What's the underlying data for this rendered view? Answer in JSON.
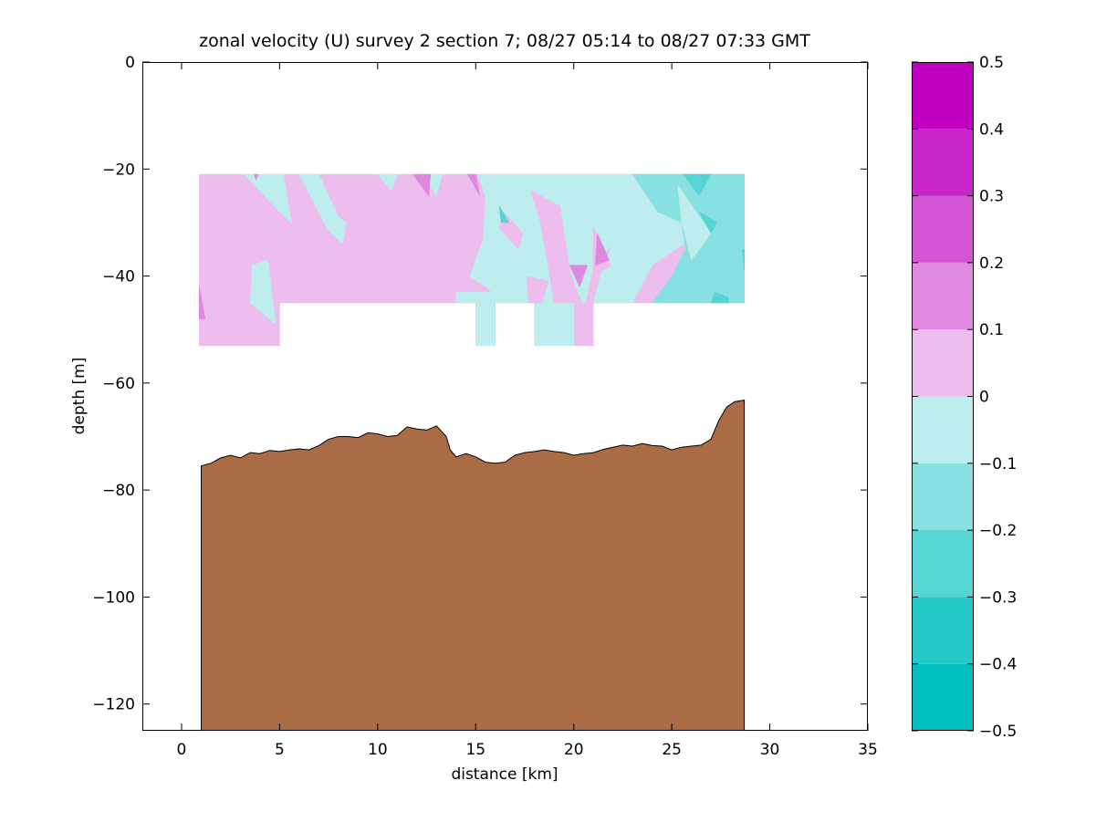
{
  "chart_data": {
    "type": "heatmap",
    "title": "zonal velocity (U) survey 2 section 7; 08/27 05:14 to 08/27 07:33 GMT",
    "xlabel": "distance [km]",
    "ylabel": "depth [m]",
    "xlim": [
      -2,
      35
    ],
    "ylim": [
      -125,
      0
    ],
    "x_ticks": [
      0,
      5,
      10,
      15,
      20,
      25,
      30,
      35
    ],
    "y_ticks": [
      0,
      -20,
      -40,
      -60,
      -80,
      -100,
      -120
    ],
    "grid": false,
    "colorbar": {
      "placement": "right",
      "range": [
        -0.5,
        0.5
      ],
      "levels": [
        -0.5,
        -0.4,
        -0.3,
        -0.2,
        -0.1,
        0,
        0.1,
        0.2,
        0.3,
        0.4,
        0.5
      ],
      "tick_labels": [
        "0.5",
        "0.4",
        "0.3",
        "0.2",
        "0.1",
        "0",
        "−0.1",
        "−0.2",
        "−0.3",
        "−0.4",
        "−0.5"
      ],
      "colors": [
        "#00bfbf",
        "#26c9c9",
        "#55d4d4",
        "#88e0e0",
        "#bdeded",
        "#edbded",
        "#e088e0",
        "#d455d4",
        "#c926c9",
        "#bf00bf"
      ]
    },
    "seafloor_color": "#a96c45",
    "velocity_regions": [
      {
        "level": "0 to 0.1",
        "color": "#edbded",
        "points": [
          [
            0.9,
            -21
          ],
          [
            28.7,
            -21
          ],
          [
            28.7,
            -45
          ],
          [
            21,
            -45
          ],
          [
            21,
            -53
          ],
          [
            18,
            -53
          ],
          [
            18,
            -45
          ],
          [
            16,
            -45
          ],
          [
            15,
            -45
          ],
          [
            5,
            -45
          ],
          [
            5,
            -53
          ],
          [
            0.9,
            -53
          ]
        ]
      },
      {
        "level": "-0.1 to 0",
        "color": "#bdeded",
        "points": [
          [
            3.2,
            -21
          ],
          [
            5.2,
            -21
          ],
          [
            5.6,
            -30
          ],
          [
            5,
            -28
          ]
        ]
      },
      {
        "level": "-0.1 to 0",
        "color": "#bdeded",
        "points": [
          [
            6,
            -21
          ],
          [
            7,
            -21
          ],
          [
            8,
            -29
          ],
          [
            7.4,
            -31
          ]
        ]
      },
      {
        "level": "-0.1 to 0",
        "color": "#bdeded",
        "points": [
          [
            7.7,
            -28
          ],
          [
            8.4,
            -30
          ],
          [
            8.2,
            -34
          ],
          [
            7.4,
            -31
          ]
        ]
      },
      {
        "level": "-0.1 to 0",
        "color": "#bdeded",
        "points": [
          [
            10,
            -21
          ],
          [
            11,
            -21
          ],
          [
            10.7,
            -24
          ]
        ]
      },
      {
        "level": "-0.1 to 0",
        "color": "#bdeded",
        "points": [
          [
            12.3,
            -21
          ],
          [
            13.3,
            -21
          ],
          [
            13,
            -25
          ]
        ]
      },
      {
        "level": "-0.1 to 0",
        "color": "#bdeded",
        "points": [
          [
            3.6,
            -38
          ],
          [
            4.4,
            -37
          ],
          [
            4.8,
            -49
          ],
          [
            3.5,
            -45
          ]
        ]
      },
      {
        "level": "-0.1 to 0",
        "color": "#bdeded",
        "points": [
          [
            15.1,
            -21
          ],
          [
            22,
            -21
          ],
          [
            23,
            -30
          ],
          [
            21,
            -38
          ],
          [
            20.6,
            -45
          ],
          [
            16.5,
            -45
          ],
          [
            15.5,
            -42
          ],
          [
            14.7,
            -40
          ],
          [
            15.4,
            -33
          ],
          [
            15.5,
            -25
          ]
        ]
      },
      {
        "level": "-0.1 to 0",
        "color": "#bdeded",
        "points": [
          [
            15,
            -45
          ],
          [
            16,
            -45
          ],
          [
            16,
            -53
          ],
          [
            15,
            -53
          ]
        ]
      },
      {
        "level": "-0.1 to 0",
        "color": "#bdeded",
        "points": [
          [
            18,
            -45
          ],
          [
            20,
            -45
          ],
          [
            20,
            -53
          ],
          [
            18,
            -53
          ]
        ]
      },
      {
        "level": "-0.1 to 0",
        "color": "#bdeded",
        "points": [
          [
            14,
            -43
          ],
          [
            16.2,
            -43
          ],
          [
            16.5,
            -45
          ],
          [
            14,
            -45
          ]
        ]
      },
      {
        "level": "-0.1 to 0",
        "color": "#bdeded",
        "points": [
          [
            22,
            -21
          ],
          [
            25,
            -21
          ],
          [
            26,
            -33
          ],
          [
            24,
            -38
          ],
          [
            23,
            -45
          ],
          [
            21,
            -45
          ],
          [
            21.5,
            -38
          ],
          [
            22.5,
            -30
          ]
        ]
      },
      {
        "level": "0 to 0.1",
        "color": "#edbded",
        "points": [
          [
            16.4,
            -28
          ],
          [
            17.4,
            -32
          ],
          [
            17.2,
            -35
          ],
          [
            16.2,
            -31
          ]
        ]
      },
      {
        "level": "0 to 0.1",
        "color": "#edbded",
        "points": [
          [
            17.8,
            -24
          ],
          [
            19.3,
            -27
          ],
          [
            19.8,
            -39
          ],
          [
            20.4,
            -45
          ],
          [
            19,
            -45
          ],
          [
            18.6,
            -36
          ],
          [
            18.3,
            -30
          ]
        ]
      },
      {
        "level": "0 to 0.1",
        "color": "#edbded",
        "points": [
          [
            21,
            -31
          ],
          [
            21.9,
            -38
          ],
          [
            21,
            -40
          ]
        ]
      },
      {
        "level": "0 to 0.1",
        "color": "#edbded",
        "points": [
          [
            17.6,
            -40
          ],
          [
            18.7,
            -41
          ],
          [
            18.4,
            -45
          ],
          [
            17.7,
            -45
          ]
        ]
      },
      {
        "level": "0.1 to 0.2",
        "color": "#e088e0",
        "points": [
          [
            21.2,
            -32
          ],
          [
            21.8,
            -37
          ],
          [
            21.1,
            -38
          ]
        ]
      },
      {
        "level": "0.1 to 0.2",
        "color": "#e088e0",
        "points": [
          [
            19.8,
            -38
          ],
          [
            20.7,
            -38
          ],
          [
            20.3,
            -42
          ]
        ]
      },
      {
        "level": "-0.2 to -0.1",
        "color": "#88e0e0",
        "points": [
          [
            23,
            -21
          ],
          [
            28.7,
            -21
          ],
          [
            28.7,
            -45
          ],
          [
            24,
            -45
          ],
          [
            25,
            -40
          ],
          [
            25.7,
            -35
          ],
          [
            25.5,
            -30
          ],
          [
            24.3,
            -28
          ]
        ]
      },
      {
        "level": "-0.1 to 0",
        "color": "#bdeded",
        "points": [
          [
            25.3,
            -23
          ],
          [
            27,
            -32
          ],
          [
            26,
            -37
          ],
          [
            25.5,
            -30
          ]
        ]
      },
      {
        "level": "-0.3 to -0.2",
        "color": "#55d4d4",
        "points": [
          [
            25.6,
            -21
          ],
          [
            27,
            -21
          ],
          [
            26.4,
            -25
          ]
        ]
      },
      {
        "level": "-0.3 to -0.2",
        "color": "#55d4d4",
        "points": [
          [
            26.4,
            -28
          ],
          [
            27.3,
            -30
          ],
          [
            27,
            -32
          ]
        ]
      },
      {
        "level": "-0.3 to -0.2",
        "color": "#55d4d4",
        "points": [
          [
            27.2,
            -43
          ],
          [
            27.9,
            -44
          ],
          [
            27.9,
            -45
          ],
          [
            27,
            -45
          ]
        ]
      },
      {
        "level": "-0.3 to -0.2",
        "color": "#55d4d4",
        "points": [
          [
            28.6,
            -35
          ],
          [
            28.7,
            -35
          ],
          [
            28.7,
            -39
          ]
        ]
      },
      {
        "level": "-0.3 to -0.2",
        "color": "#55d4d4",
        "points": [
          [
            16.2,
            -27
          ],
          [
            16.7,
            -30
          ],
          [
            16.3,
            -30
          ]
        ]
      },
      {
        "level": "0.1 to 0.2",
        "color": "#e088e0",
        "points": [
          [
            0.9,
            -42
          ],
          [
            1.2,
            -48
          ],
          [
            0.9,
            -48
          ]
        ]
      },
      {
        "level": "0.1 to 0.2",
        "color": "#e088e0",
        "points": [
          [
            3.7,
            -21
          ],
          [
            3.9,
            -21
          ],
          [
            3.8,
            -22
          ]
        ]
      },
      {
        "level": "0.1 to 0.2",
        "color": "#e088e0",
        "points": [
          [
            11.8,
            -21
          ],
          [
            12.7,
            -21
          ],
          [
            12.6,
            -25
          ]
        ]
      },
      {
        "level": "0.1 to 0.2",
        "color": "#e088e0",
        "points": [
          [
            14.6,
            -21
          ],
          [
            15,
            -21
          ],
          [
            15.2,
            -25
          ]
        ]
      }
    ],
    "bathymetry": [
      [
        1,
        -75.5
      ],
      [
        1.5,
        -75
      ],
      [
        2,
        -74
      ],
      [
        2.5,
        -73.5
      ],
      [
        3,
        -74
      ],
      [
        3.5,
        -73
      ],
      [
        4,
        -73.2
      ],
      [
        4.5,
        -72.6
      ],
      [
        5,
        -72.8
      ],
      [
        5.5,
        -72.5
      ],
      [
        6,
        -72.3
      ],
      [
        6.5,
        -72.5
      ],
      [
        7,
        -71.7
      ],
      [
        7.5,
        -70.5
      ],
      [
        8,
        -70
      ],
      [
        8.5,
        -70
      ],
      [
        9,
        -70.2
      ],
      [
        9.5,
        -69.3
      ],
      [
        10,
        -69.5
      ],
      [
        10.5,
        -70
      ],
      [
        11,
        -69.8
      ],
      [
        11.5,
        -68.2
      ],
      [
        12,
        -68.6
      ],
      [
        12.5,
        -68.8
      ],
      [
        13,
        -68
      ],
      [
        13.5,
        -70
      ],
      [
        13.7,
        -72.5
      ],
      [
        14,
        -73.8
      ],
      [
        14.5,
        -73.2
      ],
      [
        15,
        -73.8
      ],
      [
        15.5,
        -74.8
      ],
      [
        16,
        -75
      ],
      [
        16.5,
        -74.8
      ],
      [
        17,
        -73.5
      ],
      [
        17.5,
        -73
      ],
      [
        18,
        -72.8
      ],
      [
        18.5,
        -72.5
      ],
      [
        19,
        -72.8
      ],
      [
        19.5,
        -73
      ],
      [
        20,
        -73.5
      ],
      [
        20.5,
        -73.2
      ],
      [
        21,
        -73
      ],
      [
        21.5,
        -72.4
      ],
      [
        22,
        -72
      ],
      [
        22.5,
        -71.6
      ],
      [
        23,
        -71.8
      ],
      [
        23.5,
        -71.3
      ],
      [
        24,
        -71.7
      ],
      [
        24.5,
        -71.8
      ],
      [
        25,
        -72.5
      ],
      [
        25.5,
        -72
      ],
      [
        26,
        -71.8
      ],
      [
        26.5,
        -71.6
      ],
      [
        27,
        -70.5
      ],
      [
        27.4,
        -67
      ],
      [
        27.8,
        -64.5
      ],
      [
        28.2,
        -63.5
      ],
      [
        28.7,
        -63.2
      ]
    ]
  }
}
